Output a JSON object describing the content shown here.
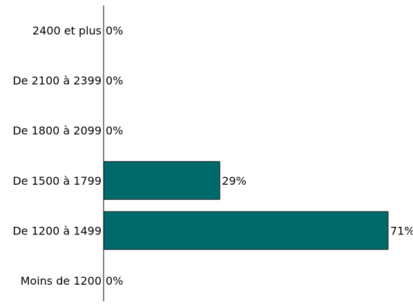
{
  "chart_data": {
    "type": "bar",
    "orientation": "horizontal",
    "categories": [
      "2400 et plus",
      "De 2100 à 2399",
      "De 1800 à 2099",
      "De 1500 à 1799",
      "De 1200 à 1499",
      "Moins de 1200"
    ],
    "values": [
      0,
      0,
      0,
      29,
      71,
      0
    ],
    "value_labels": [
      "0%",
      "0%",
      "0%",
      "29%",
      "71%",
      "0%"
    ],
    "unit": "%",
    "xlim": [
      0,
      71
    ],
    "grid": false,
    "legend": "none",
    "colors": {
      "bar_fill": "#00696a",
      "bar_stroke": "#1a1a1a",
      "axis": "#000000",
      "text": "#000000"
    }
  }
}
